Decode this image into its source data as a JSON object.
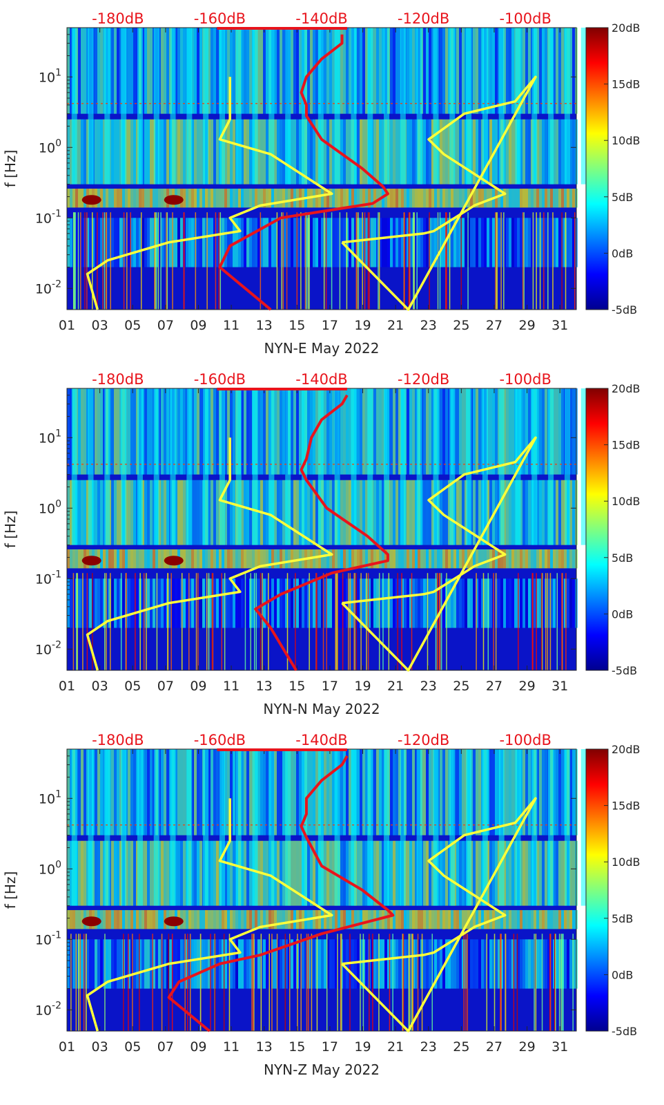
{
  "chart_data": [
    {
      "type": "heatmap",
      "title": "",
      "xlabel": "NYN-E May 2022",
      "ylabel": "f [Hz]",
      "x_tick_labels": [
        "01",
        "03",
        "05",
        "07",
        "09",
        "11",
        "13",
        "15",
        "17",
        "19",
        "21",
        "23",
        "25",
        "27",
        "29",
        "31"
      ],
      "y_tick_labels": [
        "10^-2",
        "10^-1",
        "10^0",
        "10^1"
      ],
      "xlim_days": [
        1,
        32
      ],
      "ylim_hz": [
        0.005,
        50
      ],
      "yscale": "log",
      "psd_axis_labels": [
        "-180dB",
        "-160dB",
        "-140dB",
        "-120dB",
        "-100dB"
      ],
      "psd_axis_db": [
        -180,
        -160,
        -140,
        -120,
        -100
      ],
      "colorbar": {
        "labels": [
          "20dB",
          "15dB",
          "10dB",
          "5dB",
          "0dB",
          "-5dB"
        ],
        "values": [
          20,
          15,
          10,
          5,
          0,
          -5
        ],
        "colormap": "jet"
      },
      "series": [
        {
          "color": "#ffff3a",
          "role": "noise model",
          "points": [
            [
              -158,
              10
            ],
            [
              -158,
              2.5
            ],
            [
              -160,
              1.3
            ],
            [
              -150,
              0.8
            ],
            [
              -138,
              0.22
            ],
            [
              -152,
              0.15
            ],
            [
              -158,
              0.1
            ],
            [
              -156,
              0.065
            ],
            [
              -170,
              0.045
            ],
            [
              -182,
              0.025
            ],
            [
              -186,
              0.016
            ],
            [
              -184,
              0.005
            ]
          ]
        },
        {
          "color": "#ffff3a",
          "role": "noise model",
          "points": [
            [
              -136,
              0.045
            ],
            [
              -120,
              0.06
            ],
            [
              -118,
              0.065
            ],
            [
              -110,
              0.15
            ],
            [
              -104,
              0.22
            ],
            [
              -116,
              0.8
            ],
            [
              -119,
              1.3
            ],
            [
              -112,
              3
            ],
            [
              -102,
              4.5
            ],
            [
              -98,
              10
            ],
            [
              -123,
              0.005
            ],
            [
              -136,
              0.045
            ]
          ]
        },
        {
          "color": "#e8141c",
          "role": "PSD",
          "points": [
            [
              -150,
              0.005
            ],
            [
              -160,
              0.02
            ],
            [
              -158,
              0.04
            ],
            [
              -148,
              0.1
            ],
            [
              -130,
              0.16
            ],
            [
              -127,
              0.22
            ],
            [
              -128,
              0.28
            ],
            [
              -132,
              0.5
            ],
            [
              -140,
              1.3
            ],
            [
              -143,
              2.8
            ],
            [
              -143,
              4
            ],
            [
              -144,
              6
            ],
            [
              -143,
              10
            ],
            [
              -140,
              18
            ],
            [
              -136,
              30
            ],
            [
              -136,
              40
            ]
          ]
        }
      ]
    },
    {
      "type": "heatmap",
      "title": "",
      "xlabel": "NYN-N May 2022",
      "ylabel": "f [Hz]",
      "x_tick_labels": [
        "01",
        "03",
        "05",
        "07",
        "09",
        "11",
        "13",
        "15",
        "17",
        "19",
        "21",
        "23",
        "25",
        "27",
        "29",
        "31"
      ],
      "y_tick_labels": [
        "10^-2",
        "10^-1",
        "10^0",
        "10^1"
      ],
      "xlim_days": [
        1,
        32
      ],
      "ylim_hz": [
        0.005,
        50
      ],
      "yscale": "log",
      "psd_axis_labels": [
        "-180dB",
        "-160dB",
        "-140dB",
        "-120dB",
        "-100dB"
      ],
      "psd_axis_db": [
        -180,
        -160,
        -140,
        -120,
        -100
      ],
      "colorbar": {
        "labels": [
          "20dB",
          "15dB",
          "10dB",
          "5dB",
          "0dB",
          "-5dB"
        ],
        "values": [
          20,
          15,
          10,
          5,
          0,
          -5
        ],
        "colormap": "jet"
      },
      "series": [
        {
          "color": "#ffff3a",
          "role": "noise model",
          "points": [
            [
              -158,
              10
            ],
            [
              -158,
              2.5
            ],
            [
              -160,
              1.3
            ],
            [
              -150,
              0.8
            ],
            [
              -138,
              0.22
            ],
            [
              -152,
              0.15
            ],
            [
              -158,
              0.1
            ],
            [
              -156,
              0.065
            ],
            [
              -170,
              0.045
            ],
            [
              -182,
              0.025
            ],
            [
              -186,
              0.016
            ],
            [
              -184,
              0.005
            ]
          ]
        },
        {
          "color": "#ffff3a",
          "role": "noise model",
          "points": [
            [
              -136,
              0.045
            ],
            [
              -120,
              0.06
            ],
            [
              -118,
              0.065
            ],
            [
              -110,
              0.15
            ],
            [
              -104,
              0.22
            ],
            [
              -116,
              0.8
            ],
            [
              -119,
              1.3
            ],
            [
              -112,
              3
            ],
            [
              -102,
              4.5
            ],
            [
              -98,
              10
            ],
            [
              -123,
              0.005
            ],
            [
              -136,
              0.045
            ]
          ]
        },
        {
          "color": "#e8141c",
          "role": "PSD",
          "points": [
            [
              -145,
              0.005
            ],
            [
              -150,
              0.02
            ],
            [
              -153,
              0.037
            ],
            [
              -148,
              0.06
            ],
            [
              -138,
              0.12
            ],
            [
              -127,
              0.18
            ],
            [
              -127,
              0.22
            ],
            [
              -131,
              0.4
            ],
            [
              -139,
              1.0
            ],
            [
              -143,
              2.5
            ],
            [
              -144,
              3.5
            ],
            [
              -143,
              5
            ],
            [
              -142,
              10
            ],
            [
              -140,
              18
            ],
            [
              -136,
              30
            ],
            [
              -135,
              40
            ]
          ]
        }
      ]
    },
    {
      "type": "heatmap",
      "title": "",
      "xlabel": "NYN-Z May 2022",
      "ylabel": "f [Hz]",
      "x_tick_labels": [
        "01",
        "03",
        "05",
        "07",
        "09",
        "11",
        "13",
        "15",
        "17",
        "19",
        "21",
        "23",
        "25",
        "27",
        "29",
        "31"
      ],
      "y_tick_labels": [
        "10^-2",
        "10^-1",
        "10^0",
        "10^1"
      ],
      "xlim_days": [
        1,
        32
      ],
      "ylim_hz": [
        0.005,
        50
      ],
      "yscale": "log",
      "psd_axis_labels": [
        "-180dB",
        "-160dB",
        "-140dB",
        "-120dB",
        "-100dB"
      ],
      "psd_axis_db": [
        -180,
        -160,
        -140,
        -120,
        -100
      ],
      "colorbar": {
        "labels": [
          "20dB",
          "15dB",
          "10dB",
          "5dB",
          "0dB",
          "-5dB"
        ],
        "values": [
          20,
          15,
          10,
          5,
          0,
          -5
        ],
        "colormap": "jet"
      },
      "series": [
        {
          "color": "#ffff3a",
          "role": "noise model",
          "points": [
            [
              -158,
              10
            ],
            [
              -158,
              2.5
            ],
            [
              -160,
              1.3
            ],
            [
              -150,
              0.8
            ],
            [
              -138,
              0.22
            ],
            [
              -152,
              0.15
            ],
            [
              -158,
              0.1
            ],
            [
              -156,
              0.065
            ],
            [
              -170,
              0.045
            ],
            [
              -182,
              0.025
            ],
            [
              -186,
              0.016
            ],
            [
              -184,
              0.005
            ]
          ]
        },
        {
          "color": "#ffff3a",
          "role": "noise model",
          "points": [
            [
              -136,
              0.045
            ],
            [
              -120,
              0.06
            ],
            [
              -118,
              0.065
            ],
            [
              -110,
              0.15
            ],
            [
              -104,
              0.22
            ],
            [
              -116,
              0.8
            ],
            [
              -119,
              1.3
            ],
            [
              -112,
              3
            ],
            [
              -102,
              4.5
            ],
            [
              -98,
              10
            ],
            [
              -123,
              0.005
            ],
            [
              -136,
              0.045
            ]
          ]
        },
        {
          "color": "#e8141c",
          "role": "PSD",
          "points": [
            [
              -162,
              0.005
            ],
            [
              -170,
              0.015
            ],
            [
              -168,
              0.025
            ],
            [
              -160,
              0.045
            ],
            [
              -152,
              0.06
            ],
            [
              -140,
              0.12
            ],
            [
              -126,
              0.22
            ],
            [
              -127,
              0.26
            ],
            [
              -132,
              0.5
            ],
            [
              -140,
              1.1
            ],
            [
              -143,
              2.8
            ],
            [
              -144,
              4
            ],
            [
              -143,
              6
            ],
            [
              -143,
              10
            ],
            [
              -140,
              18
            ],
            [
              -136,
              30
            ],
            [
              -135,
              40
            ]
          ]
        }
      ]
    }
  ]
}
